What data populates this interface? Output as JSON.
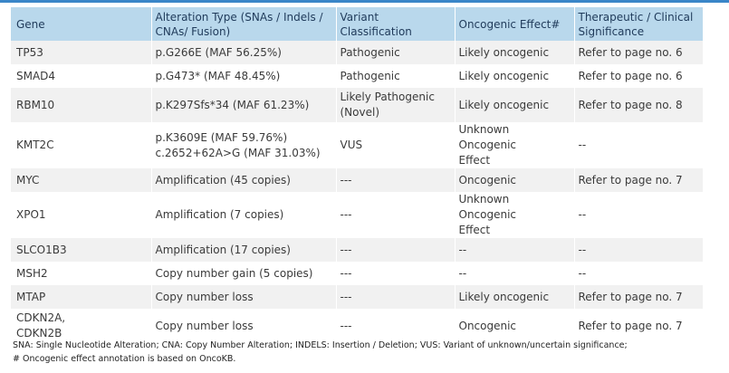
{
  "header": {
    "gene": "Gene",
    "alteration": [
      "Alteration Type (SNAs / Indels /",
      "CNAs/ Fusion)"
    ],
    "classification": "Variant Classification",
    "effect": "Oncogenic Effect#",
    "therapeutic": [
      "Therapeutic / Clinical",
      "Significance"
    ]
  },
  "rows": [
    {
      "gene": [
        "TP53"
      ],
      "alteration": [
        "p.G266E (MAF 56.25%)"
      ],
      "classification": [
        "Pathogenic"
      ],
      "effect": [
        "Likely oncogenic"
      ],
      "therapeutic": [
        "Refer to page no. 6"
      ]
    },
    {
      "gene": [
        "SMAD4"
      ],
      "alteration": [
        "p.G473* (MAF 48.45%)"
      ],
      "classification": [
        "Pathogenic"
      ],
      "effect": [
        "Likely oncogenic"
      ],
      "therapeutic": [
        "Refer to page no. 6"
      ]
    },
    {
      "gene": [
        "RBM10"
      ],
      "alteration": [
        "p.K297Sfs*34 (MAF 61.23%)"
      ],
      "classification": [
        "Likely Pathogenic",
        "(Novel)"
      ],
      "effect": [
        "Likely oncogenic"
      ],
      "therapeutic": [
        "Refer to page no. 8"
      ]
    },
    {
      "gene": [
        "KMT2C"
      ],
      "alteration": [
        "p.K3609E (MAF 59.76%)",
        "c.2652+62A>G (MAF 31.03%)"
      ],
      "classification": [
        "VUS"
      ],
      "effect": [
        "Unknown Oncogenic",
        "Effect"
      ],
      "therapeutic": [
        "--"
      ]
    },
    {
      "gene": [
        "MYC"
      ],
      "alteration": [
        "Amplification (45 copies)"
      ],
      "classification": [
        "---"
      ],
      "effect": [
        "Oncogenic"
      ],
      "therapeutic": [
        "Refer to page no. 7"
      ]
    },
    {
      "gene": [
        "XPO1"
      ],
      "alteration": [
        "Amplification (7 copies)"
      ],
      "classification": [
        "---"
      ],
      "effect": [
        "Unknown Oncogenic",
        "Effect"
      ],
      "therapeutic": [
        "--"
      ]
    },
    {
      "gene": [
        "SLCO1B3"
      ],
      "alteration": [
        "Amplification (17 copies)"
      ],
      "classification": [
        "---"
      ],
      "effect": [
        "--"
      ],
      "therapeutic": [
        "--"
      ]
    },
    {
      "gene": [
        "MSH2"
      ],
      "alteration": [
        "Copy number gain (5 copies)"
      ],
      "classification": [
        "---"
      ],
      "effect": [
        "--"
      ],
      "therapeutic": [
        "--"
      ]
    },
    {
      "gene": [
        "MTAP"
      ],
      "alteration": [
        "Copy number loss"
      ],
      "classification": [
        "---"
      ],
      "effect": [
        "Likely oncogenic"
      ],
      "therapeutic": [
        "Refer to page no. 7"
      ]
    },
    {
      "gene": [
        "CDKN2A,",
        "CDKN2B"
      ],
      "alteration": [
        "Copy number loss"
      ],
      "classification": [
        "---"
      ],
      "effect": [
        "Oncogenic"
      ],
      "therapeutic": [
        "Refer to page no. 7"
      ]
    }
  ],
  "footnotes": [
    "SNA: Single Nucleotide Alteration; CNA: Copy Number Alteration; INDELS: Insertion / Deletion; VUS: Variant of unknown/uncertain significance;",
    "# Oncogenic effect annotation is based on OncoKB."
  ],
  "colors": {
    "accent_rule": "#3a86c8",
    "header_bg": "#b9d8ec",
    "header_text": "#1f3a5a",
    "stripe_bg": "#f1f1f1"
  }
}
